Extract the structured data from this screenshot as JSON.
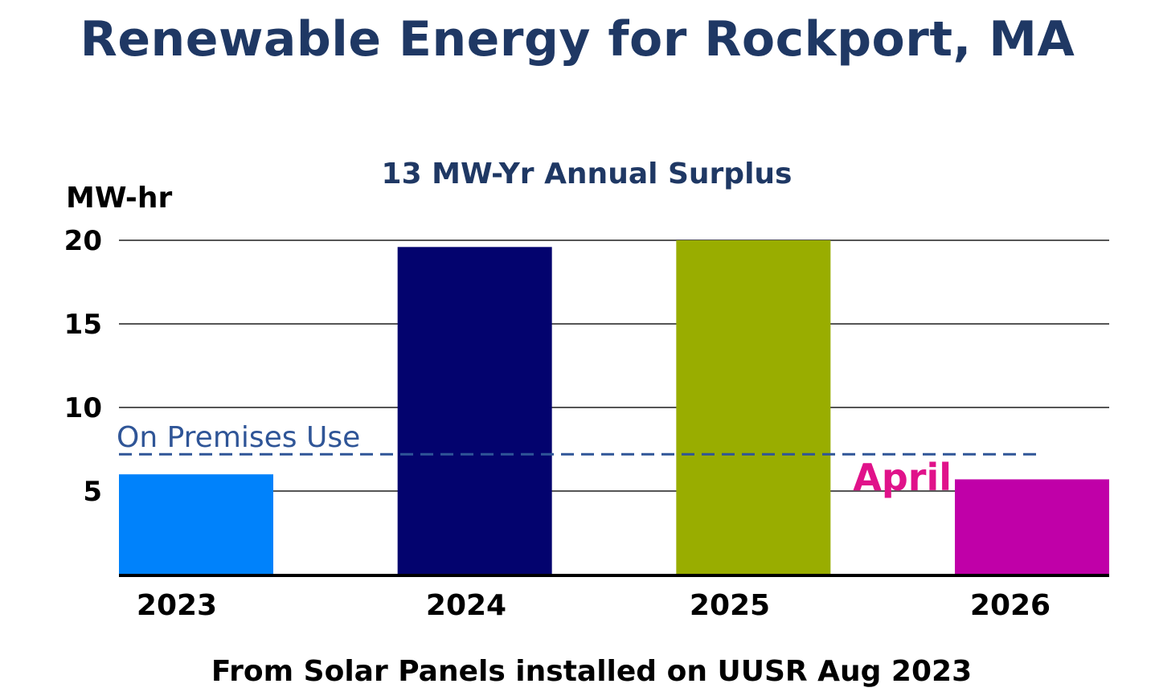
{
  "title": "Renewable Energy for Rockport, MA",
  "footer": "From Solar Panels installed on UUSR Aug 2023",
  "chart_data": {
    "type": "bar",
    "subtitle": "13 MW-Yr Annual Surplus",
    "ylabel": "MW-hr",
    "xlabel": "",
    "categories": [
      "2023",
      "2024",
      "2025",
      "2026"
    ],
    "values": [
      6,
      19.6,
      20,
      5.7
    ],
    "colors": [
      "#0082fb",
      "#03036e",
      "#99ad00",
      "#c000a8"
    ],
    "yticks": [
      5,
      10,
      15,
      20
    ],
    "ylim": [
      0,
      20
    ],
    "grid": true,
    "reference_line": {
      "label": "On Premises Use",
      "value": 7.2,
      "color": "#2f5597",
      "style": "dashed"
    },
    "annotations": [
      {
        "text": "April",
        "category": "2026",
        "color": "#e0128a"
      }
    ]
  }
}
